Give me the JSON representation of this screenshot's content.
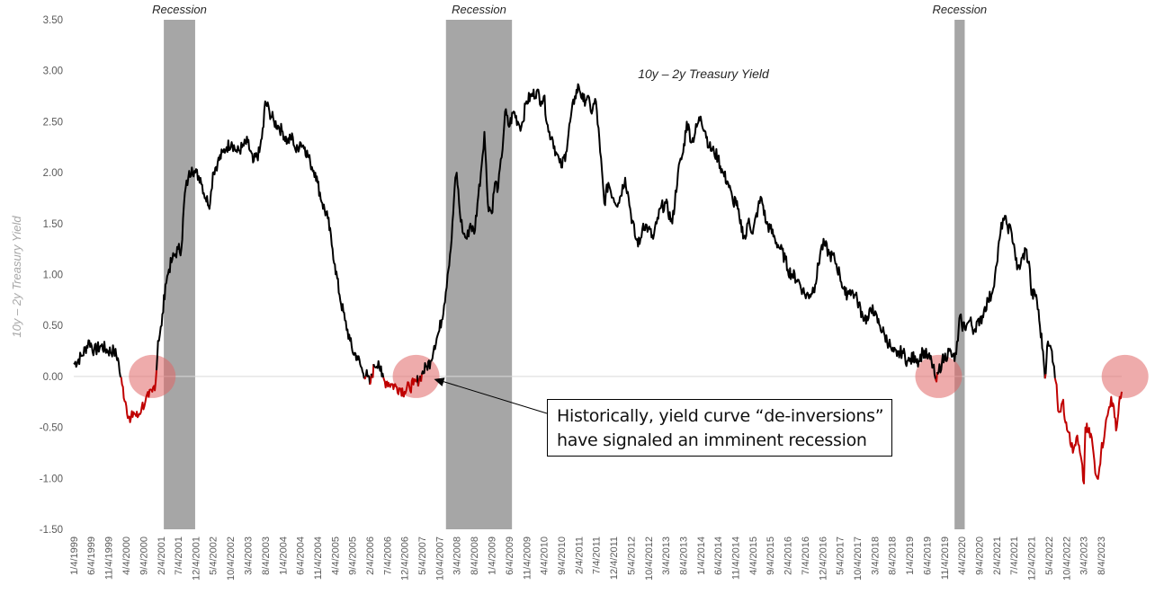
{
  "chart_data": {
    "type": "line",
    "title": "10y – 2y Treasury Yield",
    "ylabel": "10y – 2y Treasury Yield",
    "xlabel": "",
    "ylim": [
      -1.5,
      3.5
    ],
    "ytick_labels": [
      "3.50",
      "3.00",
      "2.50",
      "2.00",
      "1.50",
      "1.00",
      "0.50",
      "0.00",
      "-0.50",
      "-1.00",
      "-1.50"
    ],
    "xtick_labels": [
      "1/4/1999",
      "6/4/1999",
      "11/4/1999",
      "4/4/2000",
      "9/4/2000",
      "2/4/2001",
      "7/4/2001",
      "12/4/2001",
      "5/4/2002",
      "10/4/2002",
      "3/4/2003",
      "8/4/2003",
      "1/4/2004",
      "6/4/2004",
      "11/4/2004",
      "4/4/2005",
      "9/4/2005",
      "2/4/2006",
      "7/4/2006",
      "12/4/2006",
      "5/4/2007",
      "10/4/2007",
      "3/4/2008",
      "8/4/2008",
      "1/4/2009",
      "6/4/2009",
      "11/4/2009",
      "4/4/2010",
      "9/4/2010",
      "2/4/2011",
      "7/4/2011",
      "12/4/2011",
      "5/4/2012",
      "10/4/2012",
      "3/4/2013",
      "8/4/2013",
      "1/4/2014",
      "6/4/2014",
      "11/4/2014",
      "4/4/2015",
      "9/4/2015",
      "2/4/2016",
      "7/4/2016",
      "12/4/2016",
      "5/4/2017",
      "10/4/2017",
      "3/4/2018",
      "8/4/2018",
      "1/4/2019",
      "6/4/2019",
      "11/4/2019",
      "4/4/2020",
      "9/4/2020",
      "2/4/2021",
      "7/4/2021",
      "12/4/2021",
      "5/4/2022",
      "10/4/2022",
      "3/4/2023",
      "8/4/2023"
    ],
    "recessions": [
      {
        "label": "Recession",
        "start": "3/1/2001",
        "end": "11/30/2001"
      },
      {
        "label": "Recession",
        "start": "12/1/2007",
        "end": "6/30/2009"
      },
      {
        "label": "Recession",
        "start": "2/1/2020",
        "end": "4/30/2020"
      }
    ],
    "series": [
      {
        "color_positive": "#000000",
        "color_negative": "#c00000",
        "points": [
          [
            "1/4/1999",
            0.12
          ],
          [
            "3/15/1999",
            0.2
          ],
          [
            "5/20/1999",
            0.35
          ],
          [
            "7/1/1999",
            0.25
          ],
          [
            "9/1/1999",
            0.3
          ],
          [
            "11/1/1999",
            0.25
          ],
          [
            "12/20/1999",
            0.25
          ],
          [
            "1/25/2000",
            0.18
          ],
          [
            "2/15/2000",
            0.0
          ],
          [
            "3/1/2000",
            -0.08
          ],
          [
            "4/1/2000",
            -0.25
          ],
          [
            "5/10/2000",
            -0.45
          ],
          [
            "6/10/2000",
            -0.35
          ],
          [
            "7/15/2000",
            -0.4
          ],
          [
            "8/20/2000",
            -0.3
          ],
          [
            "9/20/2000",
            -0.25
          ],
          [
            "10/20/2000",
            -0.2
          ],
          [
            "11/20/2000",
            -0.15
          ],
          [
            "12/20/2000",
            -0.05
          ],
          [
            "1/10/2001",
            0.35
          ],
          [
            "2/10/2001",
            0.5
          ],
          [
            "3/15/2001",
            0.9
          ],
          [
            "4/15/2001",
            1.05
          ],
          [
            "5/15/2001",
            1.15
          ],
          [
            "6/10/2001",
            1.2
          ],
          [
            "7/4/2001",
            1.25
          ],
          [
            "8/1/2001",
            1.25
          ],
          [
            "9/1/2001",
            1.8
          ],
          [
            "10/1/2001",
            1.95
          ],
          [
            "11/1/2001",
            2.05
          ],
          [
            "12/1/2001",
            2.0
          ],
          [
            "1/15/2002",
            1.95
          ],
          [
            "3/1/2002",
            1.75
          ],
          [
            "4/10/2002",
            1.7
          ],
          [
            "5/4/2002",
            2.0
          ],
          [
            "6/15/2002",
            2.1
          ],
          [
            "8/1/2002",
            2.2
          ],
          [
            "9/1/2002",
            2.25
          ],
          [
            "10/15/2002",
            2.3
          ],
          [
            "12/1/2002",
            2.2
          ],
          [
            "1/15/2003",
            2.25
          ],
          [
            "3/4/2003",
            2.3
          ],
          [
            "4/20/2003",
            2.1
          ],
          [
            "6/15/2003",
            2.2
          ],
          [
            "7/20/2003",
            2.45
          ],
          [
            "8/4/2003",
            2.7
          ],
          [
            "9/10/2003",
            2.6
          ],
          [
            "10/20/2003",
            2.5
          ],
          [
            "12/1/2003",
            2.45
          ],
          [
            "1/4/2004",
            2.4
          ],
          [
            "2/15/2004",
            2.3
          ],
          [
            "4/1/2004",
            2.35
          ],
          [
            "5/1/2004",
            2.2
          ],
          [
            "6/4/2004",
            2.3
          ],
          [
            "7/15/2004",
            2.25
          ],
          [
            "9/1/2004",
            2.1
          ],
          [
            "10/15/2004",
            2.0
          ],
          [
            "11/4/2004",
            1.9
          ],
          [
            "12/15/2004",
            1.7
          ],
          [
            "2/1/2005",
            1.55
          ],
          [
            "3/15/2005",
            1.25
          ],
          [
            "4/4/2005",
            1.1
          ],
          [
            "5/15/2005",
            0.8
          ],
          [
            "7/1/2005",
            0.55
          ],
          [
            "8/15/2005",
            0.35
          ],
          [
            "9/4/2005",
            0.25
          ],
          [
            "10/15/2005",
            0.2
          ],
          [
            "12/1/2005",
            0.05
          ],
          [
            "1/15/2006",
            0.0
          ],
          [
            "2/4/2006",
            -0.08
          ],
          [
            "3/15/2006",
            0.1
          ],
          [
            "4/20/2006",
            0.15
          ],
          [
            "5/20/2006",
            0.0
          ],
          [
            "6/15/2006",
            -0.05
          ],
          [
            "7/4/2006",
            -0.05
          ],
          [
            "8/15/2006",
            -0.08
          ],
          [
            "9/20/2006",
            -0.1
          ],
          [
            "11/1/2006",
            -0.12
          ],
          [
            "12/4/2006",
            -0.15
          ],
          [
            "1/15/2007",
            -0.1
          ],
          [
            "2/20/2007",
            -0.08
          ],
          [
            "3/20/2007",
            -0.05
          ],
          [
            "4/15/2007",
            -0.02
          ],
          [
            "5/4/2007",
            0.02
          ],
          [
            "6/15/2007",
            0.1
          ],
          [
            "7/20/2007",
            0.15
          ],
          [
            "8/20/2007",
            0.3
          ],
          [
            "10/4/2007",
            0.45
          ],
          [
            "11/15/2007",
            0.7
          ],
          [
            "12/15/2007",
            1.0
          ],
          [
            "1/20/2008",
            1.35
          ],
          [
            "2/15/2008",
            1.85
          ],
          [
            "3/4/2008",
            2.0
          ],
          [
            "4/1/2008",
            1.6
          ],
          [
            "5/1/2008",
            1.4
          ],
          [
            "6/1/2008",
            1.35
          ],
          [
            "7/1/2008",
            1.5
          ],
          [
            "8/4/2008",
            1.4
          ],
          [
            "9/1/2008",
            1.7
          ],
          [
            "10/1/2008",
            2.0
          ],
          [
            "11/1/2008",
            2.4
          ],
          [
            "12/1/2008",
            1.7
          ],
          [
            "1/4/2009",
            1.6
          ],
          [
            "2/1/2009",
            1.9
          ],
          [
            "3/1/2009",
            1.85
          ],
          [
            "4/1/2009",
            2.15
          ],
          [
            "5/1/2009",
            2.6
          ],
          [
            "6/4/2009",
            2.45
          ],
          [
            "7/15/2009",
            2.6
          ],
          [
            "8/20/2009",
            2.5
          ],
          [
            "9/20/2009",
            2.45
          ],
          [
            "11/4/2009",
            2.7
          ],
          [
            "12/15/2009",
            2.75
          ],
          [
            "2/1/2010",
            2.8
          ],
          [
            "3/15/2010",
            2.7
          ],
          [
            "4/4/2010",
            2.75
          ],
          [
            "5/15/2010",
            2.4
          ],
          [
            "6/15/2010",
            2.35
          ],
          [
            "7/20/2010",
            2.2
          ],
          [
            "8/20/2010",
            2.1
          ],
          [
            "9/4/2010",
            2.05
          ],
          [
            "10/15/2010",
            2.2
          ],
          [
            "11/20/2010",
            2.5
          ],
          [
            "1/1/2011",
            2.75
          ],
          [
            "2/4/2011",
            2.85
          ],
          [
            "3/15/2011",
            2.7
          ],
          [
            "4/20/2011",
            2.75
          ],
          [
            "5/20/2011",
            2.6
          ],
          [
            "7/4/2011",
            2.7
          ],
          [
            "8/10/2011",
            2.2
          ],
          [
            "9/15/2011",
            1.7
          ],
          [
            "10/20/2011",
            1.9
          ],
          [
            "12/4/2011",
            1.75
          ],
          [
            "1/15/2012",
            1.7
          ],
          [
            "3/15/2012",
            1.95
          ],
          [
            "4/15/2012",
            1.75
          ],
          [
            "5/4/2012",
            1.6
          ],
          [
            "6/15/2012",
            1.35
          ],
          [
            "7/20/2012",
            1.3
          ],
          [
            "8/20/2012",
            1.5
          ],
          [
            "10/4/2012",
            1.45
          ],
          [
            "11/15/2012",
            1.35
          ],
          [
            "12/15/2012",
            1.5
          ],
          [
            "1/20/2013",
            1.65
          ],
          [
            "3/4/2013",
            1.7
          ],
          [
            "5/1/2013",
            1.5
          ],
          [
            "6/20/2013",
            2.0
          ],
          [
            "8/4/2013",
            2.2
          ],
          [
            "9/5/2013",
            2.5
          ],
          [
            "10/20/2013",
            2.3
          ],
          [
            "12/1/2013",
            2.45
          ],
          [
            "1/4/2014",
            2.55
          ],
          [
            "2/15/2014",
            2.4
          ],
          [
            "3/20/2014",
            2.25
          ],
          [
            "5/1/2014",
            2.2
          ],
          [
            "6/4/2014",
            2.15
          ],
          [
            "7/15/2014",
            2.0
          ],
          [
            "9/1/2014",
            1.9
          ],
          [
            "10/15/2014",
            1.7
          ],
          [
            "11/4/2014",
            1.75
          ],
          [
            "12/15/2014",
            1.5
          ],
          [
            "1/30/2015",
            1.35
          ],
          [
            "3/1/2015",
            1.55
          ],
          [
            "4/4/2015",
            1.4
          ],
          [
            "5/20/2015",
            1.65
          ],
          [
            "6/20/2015",
            1.75
          ],
          [
            "8/1/2015",
            1.5
          ],
          [
            "9/4/2015",
            1.45
          ],
          [
            "10/15/2015",
            1.35
          ],
          [
            "12/1/2015",
            1.25
          ],
          [
            "1/15/2016",
            1.15
          ],
          [
            "2/4/2016",
            1.05
          ],
          [
            "3/15/2016",
            1.0
          ],
          [
            "5/1/2016",
            0.95
          ],
          [
            "6/15/2016",
            0.85
          ],
          [
            "7/4/2016",
            0.8
          ],
          [
            "8/15/2016",
            0.8
          ],
          [
            "10/1/2016",
            0.9
          ],
          [
            "11/20/2016",
            1.25
          ],
          [
            "12/20/2016",
            1.3
          ],
          [
            "2/1/2017",
            1.2
          ],
          [
            "3/20/2017",
            1.15
          ],
          [
            "5/4/2017",
            1.0
          ],
          [
            "6/20/2017",
            0.8
          ],
          [
            "8/1/2017",
            0.85
          ],
          [
            "9/10/2017",
            0.8
          ],
          [
            "10/4/2017",
            0.75
          ],
          [
            "11/20/2017",
            0.6
          ],
          [
            "1/4/2018",
            0.55
          ],
          [
            "2/15/2018",
            0.7
          ],
          [
            "3/4/2018",
            0.6
          ],
          [
            "4/20/2018",
            0.5
          ],
          [
            "6/1/2018",
            0.4
          ],
          [
            "7/20/2018",
            0.3
          ],
          [
            "8/4/2018",
            0.25
          ],
          [
            "9/15/2018",
            0.2
          ],
          [
            "11/1/2018",
            0.25
          ],
          [
            "12/15/2018",
            0.15
          ],
          [
            "1/4/2019",
            0.15
          ],
          [
            "2/20/2019",
            0.2
          ],
          [
            "3/25/2019",
            0.15
          ],
          [
            "5/1/2019",
            0.25
          ],
          [
            "6/4/2019",
            0.2
          ],
          [
            "7/15/2019",
            0.15
          ],
          [
            "8/10/2019",
            0.02
          ],
          [
            "8/27/2019",
            -0.05
          ],
          [
            "9/15/2019",
            0.05
          ],
          [
            "10/15/2019",
            0.15
          ],
          [
            "11/4/2019",
            0.18
          ],
          [
            "12/15/2019",
            0.25
          ],
          [
            "1/15/2020",
            0.2
          ],
          [
            "2/1/2020",
            0.15
          ],
          [
            "3/1/2020",
            0.35
          ],
          [
            "3/20/2020",
            0.6
          ],
          [
            "4/4/2020",
            0.5
          ],
          [
            "5/15/2020",
            0.5
          ],
          [
            "6/15/2020",
            0.55
          ],
          [
            "7/20/2020",
            0.45
          ],
          [
            "8/20/2020",
            0.55
          ],
          [
            "9/4/2020",
            0.5
          ],
          [
            "10/15/2020",
            0.65
          ],
          [
            "11/20/2020",
            0.75
          ],
          [
            "12/20/2020",
            0.8
          ],
          [
            "1/20/2021",
            1.0
          ],
          [
            "2/4/2021",
            1.1
          ],
          [
            "3/1/2021",
            1.35
          ],
          [
            "3/31/2021",
            1.55
          ],
          [
            "5/1/2021",
            1.5
          ],
          [
            "6/15/2021",
            1.4
          ],
          [
            "7/4/2021",
            1.3
          ],
          [
            "8/1/2021",
            1.05
          ],
          [
            "9/1/2021",
            1.1
          ],
          [
            "10/15/2021",
            1.25
          ],
          [
            "11/20/2021",
            1.05
          ],
          [
            "12/4/2021",
            0.8
          ],
          [
            "1/15/2022",
            0.8
          ],
          [
            "2/10/2022",
            0.55
          ],
          [
            "3/15/2022",
            0.25
          ],
          [
            "4/1/2022",
            -0.02
          ],
          [
            "4/20/2022",
            0.3
          ],
          [
            "5/4/2022",
            0.3
          ],
          [
            "6/1/2022",
            0.25
          ],
          [
            "6/20/2022",
            0.1
          ],
          [
            "7/5/2022",
            -0.05
          ],
          [
            "8/1/2022",
            -0.35
          ],
          [
            "9/1/2022",
            -0.25
          ],
          [
            "10/4/2022",
            -0.45
          ],
          [
            "11/1/2022",
            -0.55
          ],
          [
            "12/1/2022",
            -0.75
          ],
          [
            "1/1/2023",
            -0.6
          ],
          [
            "2/1/2023",
            -0.75
          ],
          [
            "3/8/2023",
            -1.05
          ],
          [
            "3/20/2023",
            -0.5
          ],
          [
            "4/15/2023",
            -0.55
          ],
          [
            "5/15/2023",
            -0.6
          ],
          [
            "6/15/2023",
            -0.95
          ],
          [
            "7/3/2023",
            -1.0
          ],
          [
            "8/4/2023",
            -0.75
          ],
          [
            "9/10/2023",
            -0.5
          ],
          [
            "10/15/2023",
            -0.3
          ],
          [
            "11/1/2023",
            -0.2
          ],
          [
            "12/1/2023",
            -0.4
          ],
          [
            "12/20/2023",
            -0.5
          ],
          [
            "1/15/2024",
            -0.2
          ],
          [
            "2/1/2024",
            -0.15
          ]
        ]
      }
    ],
    "highlight_circles_at": [
      "11/20/2000",
      "3/15/2007",
      "9/15/2019",
      "3/1/2024"
    ],
    "annotation": {
      "lines": [
        "Historically, yield curve “de-inversions”",
        "have signaled an imminent recession"
      ],
      "points_to": [
        "6/1/2007",
        0.0
      ]
    }
  }
}
